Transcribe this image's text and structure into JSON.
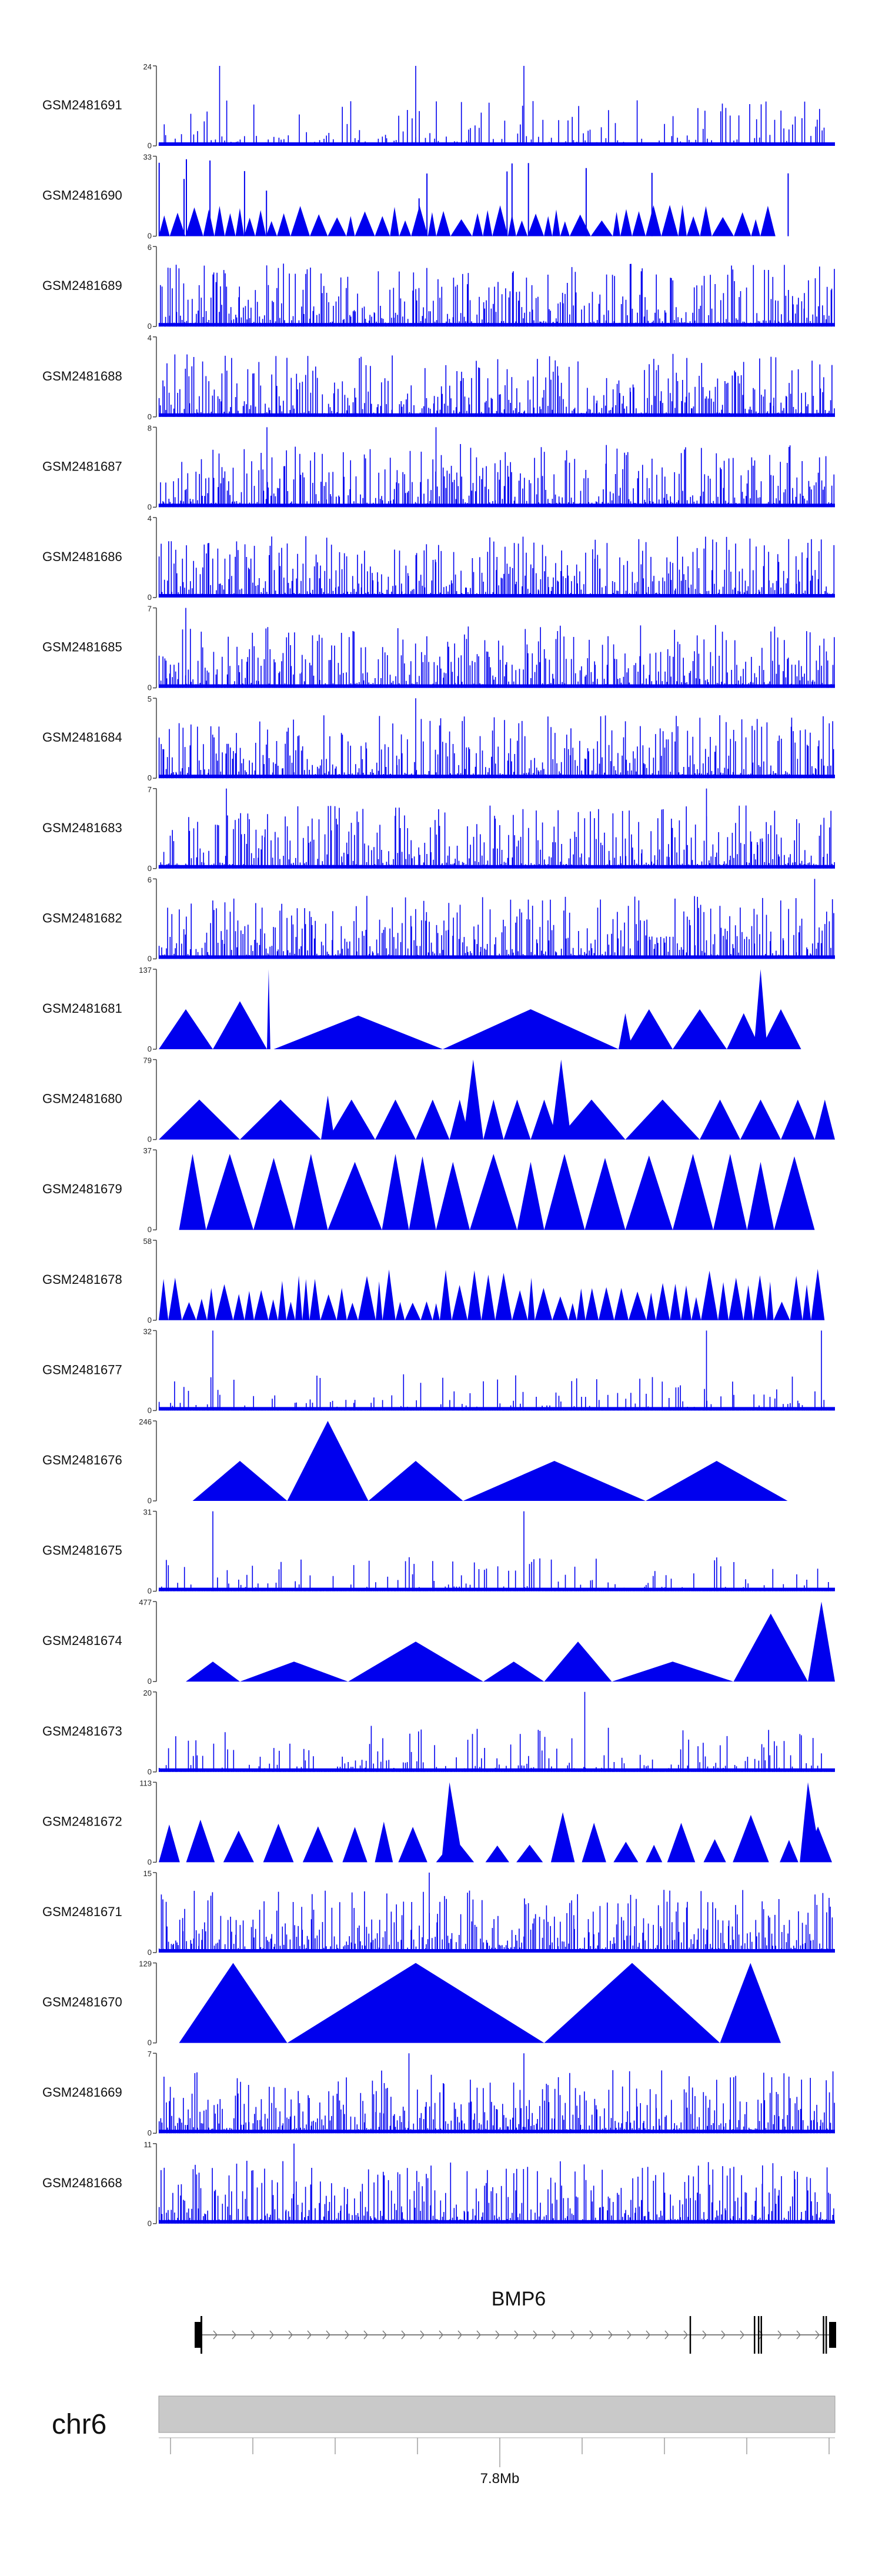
{
  "chart_data": {
    "type": "area",
    "description_units": "coverage tracks over genomic region on chr6",
    "chromosome": "chr6",
    "gene": {
      "name": "BMP6",
      "strand": "+"
    },
    "axis": {
      "labels": [
        "",
        "",
        "",
        "",
        "7.8Mb",
        "",
        "",
        "",
        ""
      ],
      "tick_count": 9,
      "labeled_tick_index": 4
    },
    "tracks": [
      {
        "sample": "GSM2481691",
        "ymax": "24",
        "ymin": "0",
        "style": "spiky",
        "seed": 11,
        "peaks": [
          0.09,
          0.38,
          0.54
        ]
      },
      {
        "sample": "GSM2481690",
        "ymax": "33",
        "ymin": "0",
        "style": "teeth",
        "seed": 23,
        "count": 46
      },
      {
        "sample": "GSM2481689",
        "ymax": "6",
        "ymin": "0",
        "style": "dense",
        "seed": 31,
        "peaks": []
      },
      {
        "sample": "GSM2481688",
        "ymax": "4",
        "ymin": "0",
        "style": "dense",
        "seed": 47,
        "peaks": []
      },
      {
        "sample": "GSM2481687",
        "ymax": "8",
        "ymin": "0",
        "style": "dense",
        "seed": 53,
        "peaks": [
          0.16,
          0.41
        ]
      },
      {
        "sample": "GSM2481686",
        "ymax": "4",
        "ymin": "0",
        "style": "dense",
        "seed": 61,
        "peaks": []
      },
      {
        "sample": "GSM2481685",
        "ymax": "7",
        "ymin": "0",
        "style": "dense",
        "seed": 71,
        "peaks": [
          0.04
        ]
      },
      {
        "sample": "GSM2481684",
        "ymax": "5",
        "ymin": "0",
        "style": "dense",
        "seed": 83,
        "peaks": [
          0.38
        ]
      },
      {
        "sample": "GSM2481683",
        "ymax": "7",
        "ymin": "0",
        "style": "dense",
        "seed": 97,
        "peaks": [
          0.1,
          0.81
        ]
      },
      {
        "sample": "GSM2481682",
        "ymax": "6",
        "ymin": "0",
        "style": "dense",
        "seed": 101,
        "peaks": [
          0.97
        ]
      },
      {
        "sample": "GSM2481681",
        "ymax": "137",
        "ymin": "0",
        "style": "triangles",
        "tri": [
          [
            0.0,
            0.08,
            0.5
          ],
          [
            0.08,
            0.16,
            0.6
          ],
          [
            0.16,
            0.165,
            1.0
          ],
          [
            0.17,
            0.42,
            0.42
          ],
          [
            0.42,
            0.68,
            0.5
          ],
          [
            0.68,
            0.7,
            0.45
          ],
          [
            0.69,
            0.76,
            0.5
          ],
          [
            0.76,
            0.84,
            0.5
          ],
          [
            0.84,
            0.89,
            0.45
          ],
          [
            0.88,
            0.9,
            1.0
          ],
          [
            0.89,
            0.95,
            0.5
          ]
        ]
      },
      {
        "sample": "GSM2481680",
        "ymax": "79",
        "ymin": "0",
        "style": "triangles",
        "tri": [
          [
            0.0,
            0.12,
            0.5
          ],
          [
            0.12,
            0.24,
            0.5
          ],
          [
            0.24,
            0.26,
            0.55
          ],
          [
            0.25,
            0.32,
            0.5
          ],
          [
            0.32,
            0.38,
            0.5
          ],
          [
            0.38,
            0.43,
            0.5
          ],
          [
            0.43,
            0.46,
            0.5
          ],
          [
            0.45,
            0.48,
            1.0
          ],
          [
            0.48,
            0.51,
            0.5
          ],
          [
            0.51,
            0.55,
            0.5
          ],
          [
            0.55,
            0.59,
            0.5
          ],
          [
            0.58,
            0.61,
            1.0
          ],
          [
            0.59,
            0.69,
            0.5
          ],
          [
            0.69,
            0.8,
            0.5
          ],
          [
            0.8,
            0.86,
            0.5
          ],
          [
            0.86,
            0.92,
            0.5
          ],
          [
            0.92,
            0.97,
            0.5
          ],
          [
            0.97,
            1.0,
            0.5
          ]
        ]
      },
      {
        "sample": "GSM2481679",
        "ymax": "37",
        "ymin": "0",
        "style": "triangles",
        "tri": [
          [
            0.03,
            0.07,
            0.95
          ],
          [
            0.07,
            0.14,
            0.95
          ],
          [
            0.14,
            0.2,
            0.9
          ],
          [
            0.2,
            0.25,
            0.95
          ],
          [
            0.25,
            0.33,
            0.85
          ],
          [
            0.33,
            0.37,
            0.95
          ],
          [
            0.37,
            0.41,
            0.92
          ],
          [
            0.41,
            0.46,
            0.85
          ],
          [
            0.46,
            0.53,
            0.95
          ],
          [
            0.53,
            0.57,
            0.85
          ],
          [
            0.57,
            0.63,
            0.95
          ],
          [
            0.63,
            0.69,
            0.9
          ],
          [
            0.69,
            0.76,
            0.93
          ],
          [
            0.76,
            0.82,
            0.95
          ],
          [
            0.82,
            0.87,
            0.95
          ],
          [
            0.87,
            0.91,
            0.85
          ],
          [
            0.91,
            0.97,
            0.92
          ]
        ]
      },
      {
        "sample": "GSM2481678",
        "ymax": "58",
        "ymin": "0",
        "style": "teeth2",
        "seed": 137,
        "count": 56
      },
      {
        "sample": "GSM2481677",
        "ymax": "32",
        "ymin": "0",
        "style": "sparse",
        "seed": 149,
        "peaks": [
          0.08,
          0.81,
          0.98
        ]
      },
      {
        "sample": "GSM2481676",
        "ymax": "246",
        "ymin": "0",
        "style": "triangles",
        "tri": [
          [
            0.05,
            0.19,
            0.5
          ],
          [
            0.19,
            0.31,
            1.0
          ],
          [
            0.31,
            0.45,
            0.5
          ],
          [
            0.45,
            0.72,
            0.5
          ],
          [
            0.72,
            0.93,
            0.5
          ]
        ]
      },
      {
        "sample": "GSM2481675",
        "ymax": "31",
        "ymin": "0",
        "style": "sparse",
        "seed": 163,
        "peaks": [
          0.08,
          0.54
        ]
      },
      {
        "sample": "GSM2481674",
        "ymax": "477",
        "ymin": "0",
        "style": "triangles",
        "tri": [
          [
            0.04,
            0.12,
            0.25
          ],
          [
            0.12,
            0.28,
            0.25
          ],
          [
            0.28,
            0.48,
            0.5
          ],
          [
            0.48,
            0.57,
            0.25
          ],
          [
            0.57,
            0.67,
            0.5
          ],
          [
            0.67,
            0.85,
            0.25
          ],
          [
            0.85,
            0.96,
            0.85
          ],
          [
            0.96,
            1.0,
            1.0
          ]
        ]
      },
      {
        "sample": "GSM2481673",
        "ymax": "20",
        "ymin": "0",
        "style": "spiky",
        "seed": 179,
        "peaks": [
          0.63
        ]
      },
      {
        "sample": "GSM2481672",
        "ymax": "113",
        "ymin": "0",
        "style": "teeth3",
        "seed": 191,
        "count": 26,
        "peaks": [
          0.43,
          0.96
        ]
      },
      {
        "sample": "GSM2481671",
        "ymax": "15",
        "ymin": "0",
        "style": "dense",
        "seed": 197,
        "peaks": [
          0.4
        ]
      },
      {
        "sample": "GSM2481670",
        "ymax": "129",
        "ymin": "0",
        "style": "triangles",
        "tri": [
          [
            0.03,
            0.19,
            1.0
          ],
          [
            0.19,
            0.57,
            1.0
          ],
          [
            0.57,
            0.83,
            1.0
          ],
          [
            0.83,
            0.92,
            1.0
          ]
        ]
      },
      {
        "sample": "GSM2481669",
        "ymax": "7",
        "ymin": "0",
        "style": "dense",
        "seed": 211,
        "peaks": [
          0.37,
          0.54
        ]
      },
      {
        "sample": "GSM2481668",
        "ymax": "11",
        "ymin": "0",
        "style": "dense",
        "seed": 223,
        "peaks": [
          0.2
        ]
      }
    ],
    "colors": {
      "coverage": "#0000ee",
      "axis": "#444444",
      "label": "#111111",
      "chrom_bar": "#c9c9c9"
    }
  }
}
